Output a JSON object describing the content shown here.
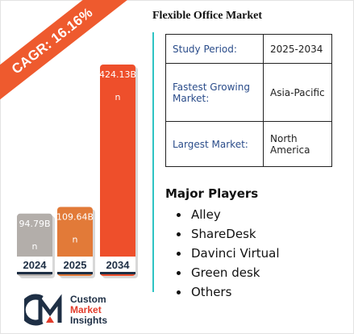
{
  "title": "Flexible Office Market",
  "cagr": "CAGR: 16.16%",
  "info_table": [
    {
      "label": "Study Period:",
      "value": "2025-2034"
    },
    {
      "label": "Fastest Growing Market:",
      "value": "Asia-Pacific"
    },
    {
      "label": "Largest Market:",
      "value": "North America"
    }
  ],
  "players": {
    "heading": "Major Players",
    "items": [
      "Alley",
      "ShareDesk",
      "Davinci Virtual",
      "Green desk",
      "Others"
    ]
  },
  "logo": {
    "line1": "Custom",
    "line2": "Market",
    "line3": "Insights"
  },
  "colors": {
    "accent": "#ee5a2e",
    "divider": "#2ec4c4",
    "year_text": "#1e2f45"
  },
  "chart_data": {
    "type": "bar",
    "categories": [
      "2024",
      "2025",
      "2034"
    ],
    "values": [
      94.79,
      109.64,
      424.13
    ],
    "value_labels": [
      "94.79B",
      "109.64B",
      "424.13B"
    ],
    "unit_labels": [
      "n",
      "n",
      "n"
    ],
    "bar_colors": [
      "#b3aeaa",
      "#e27a38",
      "#ee4f2b"
    ],
    "grid": false,
    "legend": "none"
  }
}
